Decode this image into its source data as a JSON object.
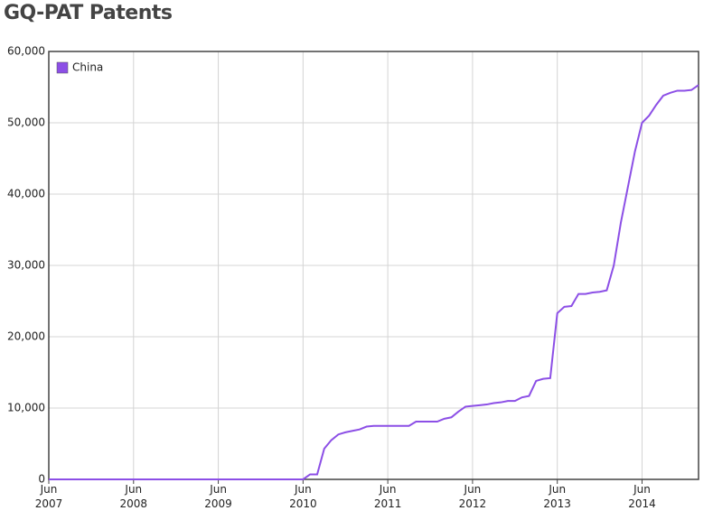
{
  "chart_data": {
    "type": "line",
    "title": "GQ-PAT Patents",
    "x": [
      "2007-06",
      "2010-05",
      "2010-06",
      "2010-07",
      "2010-08",
      "2010-09",
      "2010-10",
      "2010-11",
      "2010-12",
      "2011-01",
      "2011-02",
      "2011-03",
      "2011-04",
      "2011-09",
      "2011-10",
      "2012-01",
      "2012-02",
      "2012-03",
      "2012-04",
      "2012-05",
      "2012-06",
      "2012-07",
      "2012-08",
      "2012-09",
      "2012-10",
      "2012-11",
      "2012-12",
      "2013-01",
      "2013-02",
      "2013-03",
      "2013-04",
      "2013-05",
      "2013-06",
      "2013-07",
      "2013-08",
      "2013-09",
      "2013-10",
      "2013-11",
      "2013-12",
      "2014-01",
      "2014-02",
      "2014-03",
      "2014-04",
      "2014-05",
      "2014-06",
      "2014-07",
      "2014-08",
      "2014-09",
      "2014-10",
      "2014-11",
      "2014-12",
      "2015-01",
      "2015-02"
    ],
    "series": [
      {
        "name": "China",
        "color": "#8c4fe6",
        "values": [
          0,
          0,
          0,
          700,
          700,
          4300,
          5500,
          6300,
          6600,
          6800,
          7000,
          7400,
          7500,
          7500,
          8100,
          8100,
          8500,
          8700,
          9500,
          10200,
          10300,
          10400,
          10500,
          10700,
          10800,
          11000,
          11000,
          11500,
          11700,
          13800,
          14100,
          14200,
          23300,
          24200,
          24300,
          26000,
          26000,
          26200,
          26300,
          26500,
          30000,
          36000,
          41000,
          46000,
          50000,
          51000,
          52500,
          53800,
          54200,
          54500,
          54500,
          54600,
          55300
        ]
      }
    ],
    "xlim": [
      "2007-06",
      "2015-02"
    ],
    "xticks": [
      {
        "value": "2007-06",
        "label": "Jun\n2007"
      },
      {
        "value": "2008-06",
        "label": "Jun\n2008"
      },
      {
        "value": "2009-06",
        "label": "Jun\n2009"
      },
      {
        "value": "2010-06",
        "label": "Jun\n2010"
      },
      {
        "value": "2011-06",
        "label": "Jun\n2011"
      },
      {
        "value": "2012-06",
        "label": "Jun\n2012"
      },
      {
        "value": "2013-06",
        "label": "Jun\n2013"
      },
      {
        "value": "2014-06",
        "label": "Jun\n2014"
      }
    ],
    "ylim": [
      0,
      60000
    ],
    "yticks": [
      0,
      {
        "value": 10000,
        "label": "10,000"
      },
      {
        "value": 20000,
        "label": "20,000"
      },
      {
        "value": 30000,
        "label": "30,000"
      },
      {
        "value": 40000,
        "label": "40,000"
      },
      {
        "value": 50000,
        "label": "50,000"
      },
      {
        "value": 60000,
        "label": "60,000"
      }
    ],
    "grid": true,
    "legend": "top-left"
  }
}
